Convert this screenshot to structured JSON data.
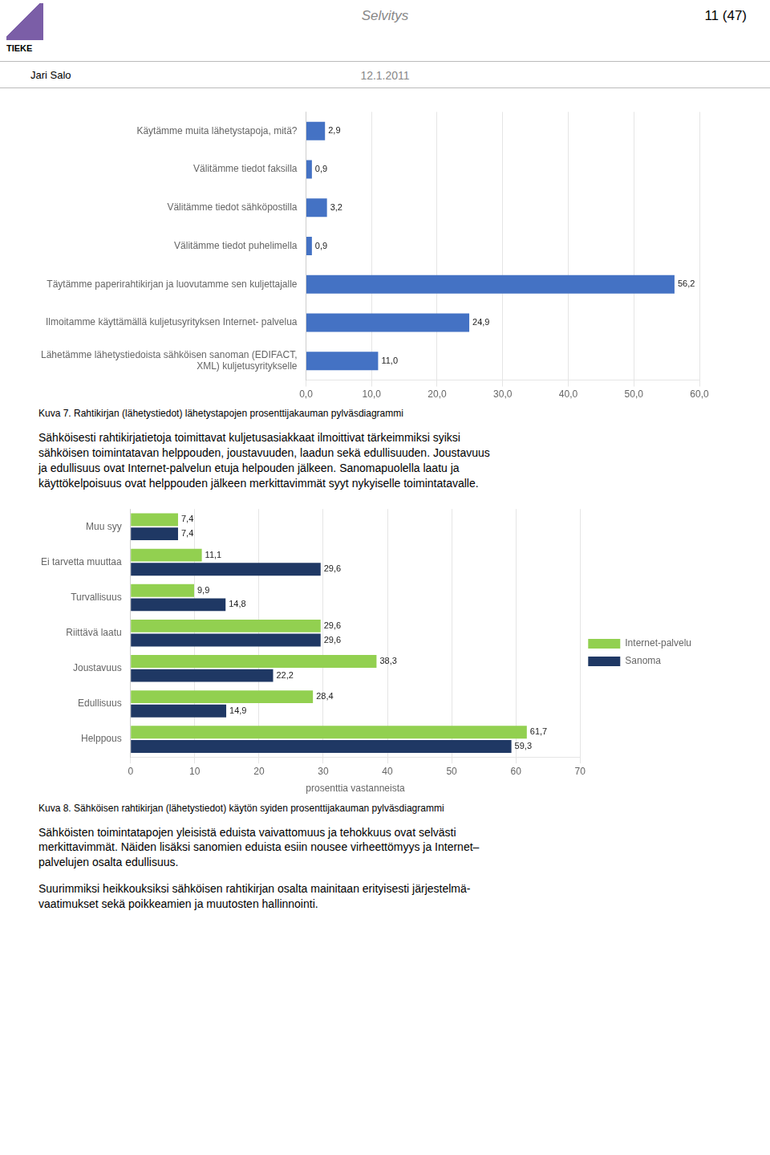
{
  "page": {
    "logo_text": "TIEKE",
    "header_center": "Selvitys",
    "header_right": "11 (47)",
    "header_left": "Jari Salo",
    "header_date": "12.1.2011"
  },
  "chart_data": [
    {
      "type": "bar",
      "orientation": "horizontal",
      "caption": "Kuva 7. Rahtikirjan (lähetystiedot) lähetystapojen prosenttijakauman pylväsdiagrammi",
      "categories": [
        "Käytämme muita lähetystapoja, mitä?",
        "Välitämme tiedot faksilla",
        "Välitämme tiedot sähköpostilla",
        "Välitämme tiedot puhelimella",
        "Täytämme paperirahtikirjan ja luovutamme sen kuljettajalle",
        "Ilmoitamme käyttämällä kuljetusyrityksen Internet- palvelua",
        "Lähetämme lähetystiedoista sähköisen sanoman (EDIFACT,\nXML) kuljetusyritykselle"
      ],
      "values": [
        2.9,
        0.9,
        3.2,
        0.9,
        56.2,
        24.9,
        11.0
      ],
      "value_labels": [
        "2,9",
        "0,9",
        "3,2",
        "0,9",
        "56,2",
        "24,9",
        "11,0"
      ],
      "color": "#4472C4",
      "xlim": [
        0,
        60
      ],
      "xticks": [
        {
          "value": 0,
          "label": "0,0"
        },
        {
          "value": 10,
          "label": "10,0"
        },
        {
          "value": 20,
          "label": "20,0"
        },
        {
          "value": 30,
          "label": "30,0"
        },
        {
          "value": 40,
          "label": "40,0"
        },
        {
          "value": 50,
          "label": "50,0"
        },
        {
          "value": 60,
          "label": "60,0"
        }
      ],
      "grid": true,
      "data_labels": true,
      "paragraphs": [
        [
          "Sähköisesti rahtikirjatietoja toimittavat kuljetusasiakkaat ilmoittivat tärkeimmiksi syiksi",
          "sähköisen toimintatavan helppouden, joustavuuden, laadun sekä edullisuuden. Joustavuus",
          "ja edullisuus ovat Internet-palvelun etuja helpouden jälkeen. Sanomapuolella laatu ja",
          "käyttökelpoisuus ovat helppouden jälkeen merkittavimmät syyt nykyiselle toimintatavalle."
        ]
      ]
    },
    {
      "type": "bar",
      "orientation": "horizontal",
      "caption": "Kuva 8. Sähköisen rahtikirjan (lähetystiedot) käytön syiden prosenttijakauman pylväsdiagrammi",
      "categories": [
        "Muu syy",
        "Ei tarvetta muuttaa",
        "Turvallisuus",
        "Riittävä laatu",
        "Joustavuus",
        "Edullisuus",
        "Helppous"
      ],
      "series": [
        {
          "name": "Internet-palvelu",
          "color": "#92D050",
          "values": [
            7.4,
            11.1,
            9.9,
            29.6,
            38.3,
            28.4,
            61.7
          ],
          "value_labels": [
            "7,4",
            "11,1",
            "9,9",
            "29,6",
            "38,3",
            "28,4",
            "61,7"
          ]
        },
        {
          "name": "Sanoma",
          "color": "#1F3864",
          "values": [
            7.4,
            29.6,
            14.8,
            29.6,
            22.2,
            14.9,
            59.3
          ],
          "value_labels": [
            "7,4",
            "29,6",
            "14,8",
            "29,6",
            "22,2",
            "14,9",
            "59,3"
          ]
        }
      ],
      "xlabel": "prosenttia vastanneista",
      "xlim": [
        0,
        70
      ],
      "xticks": [
        0,
        10,
        20,
        30,
        40,
        50,
        60,
        70
      ],
      "grid": true,
      "legend": "right",
      "data_labels": true,
      "paragraphs": [
        [
          "Sähköisten toimintatapojen yleisistä eduista vaivattomuus ja tehokkuus ovat selvästi",
          "merkittavimmät. Näiden lisäksi sanomien eduista esiin nousee virheettömyys ja Internet–",
          "palvelujen osalta edullisuus."
        ],
        [
          "Suurimmiksi heikkouksiksi sähköisen rahtikirjan osalta mainitaan erityisesti järjestelmä-",
          "vaatimukset sekä poikkeamien ja muutosten hallinnointi."
        ]
      ]
    }
  ]
}
